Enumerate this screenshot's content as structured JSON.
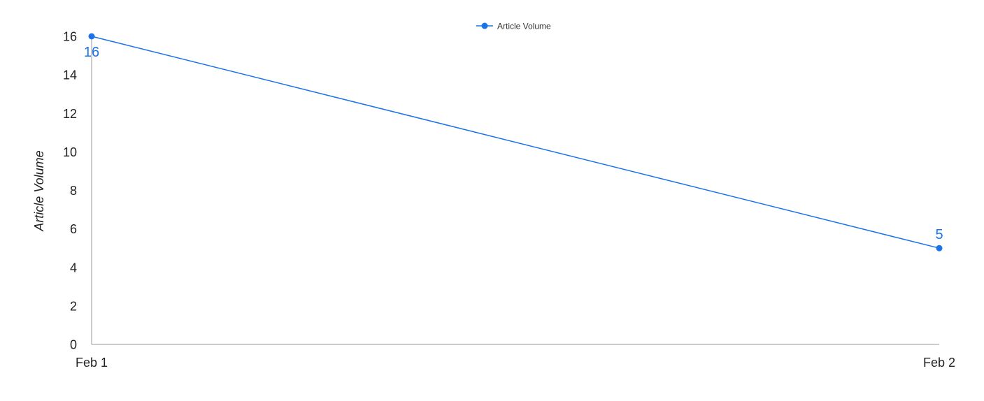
{
  "chart_data": {
    "type": "line",
    "title": "",
    "xlabel": "",
    "ylabel": "Article Volume",
    "categories": [
      "Feb 1",
      "Feb 2"
    ],
    "series": [
      {
        "name": "Article Volume",
        "values": [
          16,
          5
        ],
        "data_labels": [
          "16",
          "5"
        ],
        "color": "#1a73e8"
      }
    ],
    "ylim": [
      0,
      16
    ],
    "yticks": [
      "0",
      "2",
      "4",
      "6",
      "8",
      "10",
      "12",
      "14",
      "16"
    ],
    "grid": false,
    "legend": "top-center"
  }
}
